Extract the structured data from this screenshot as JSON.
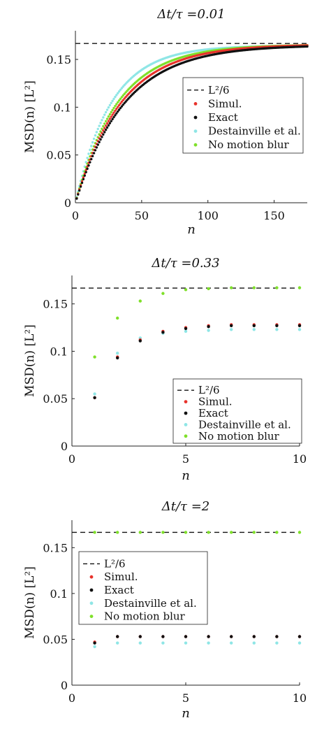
{
  "colors": {
    "simul": "#e8322b",
    "exact": "#111111",
    "destainville": "#8fe6e6",
    "no_blur": "#7fe02a",
    "reference": "#111111"
  },
  "chart_data": [
    {
      "type": "scatter",
      "title": "Δt/τ =0.01",
      "xlabel": "n",
      "ylabel": "MSD(n) [L²]",
      "xlim": [
        0,
        175
      ],
      "ylim": [
        0,
        0.18
      ],
      "xticks": [
        0,
        50,
        100,
        150
      ],
      "xtick_labels": [
        "0",
        "50",
        "100",
        "150"
      ],
      "yticks": [
        0,
        0.05,
        0.1,
        0.15
      ],
      "ytick_labels": [
        "0",
        "0.05",
        "0.1",
        "0.15"
      ],
      "reference_line": {
        "name": "L²/6",
        "y": 0.1667
      },
      "legend_position": "right",
      "legend": [
        "L²/6",
        "Simul.",
        "Exact",
        "Destainville et al.",
        "No motion blur"
      ],
      "curves": {
        "n_max": 175,
        "series": [
          {
            "key": "destainville",
            "label": "Destainville et al.",
            "asymptote": 0.1645,
            "rate": 0.0373
          },
          {
            "key": "no_blur",
            "label": "No motion blur",
            "asymptote": 0.1655,
            "rate": 0.0315
          },
          {
            "key": "simul",
            "label": "Simul.",
            "asymptote": 0.1657,
            "rate": 0.029
          },
          {
            "key": "exact",
            "label": "Exact",
            "asymptote": 0.165,
            "rate": 0.027
          }
        ]
      }
    },
    {
      "type": "scatter",
      "title": "Δt/τ =0.33",
      "xlabel": "n",
      "ylabel": "MSD(n) [L²]",
      "xlim": [
        0,
        10
      ],
      "ylim": [
        0,
        0.18
      ],
      "xticks": [
        0,
        5,
        10
      ],
      "xtick_labels": [
        "0",
        "5",
        "10"
      ],
      "yticks": [
        0,
        0.05,
        0.1,
        0.15
      ],
      "ytick_labels": [
        "0",
        "0.05",
        "0.1",
        "0.15"
      ],
      "reference_line": {
        "name": "L²/6",
        "y": 0.1667
      },
      "legend_position": "bottom-right",
      "legend": [
        "L²/6",
        "Simul.",
        "Exact",
        "Destainville et al.",
        "No motion blur"
      ],
      "x": [
        1,
        2,
        3,
        4,
        5,
        6,
        7,
        8,
        9,
        10
      ],
      "series": [
        {
          "key": "no_blur",
          "label": "No motion blur",
          "values": [
            0.094,
            0.135,
            0.153,
            0.161,
            0.165,
            0.166,
            0.167,
            0.167,
            0.167,
            0.167
          ]
        },
        {
          "key": "destainville",
          "label": "Destainville et al.",
          "values": [
            0.055,
            0.098,
            0.114,
            0.119,
            0.121,
            0.122,
            0.123,
            0.123,
            0.123,
            0.123
          ]
        },
        {
          "key": "simul",
          "label": "Simul.",
          "values": [
            0.051,
            0.094,
            0.112,
            0.121,
            0.125,
            0.127,
            0.128,
            0.128,
            0.128,
            0.128
          ]
        },
        {
          "key": "exact",
          "label": "Exact",
          "values": [
            0.051,
            0.093,
            0.111,
            0.12,
            0.124,
            0.126,
            0.127,
            0.127,
            0.127,
            0.127
          ]
        }
      ]
    },
    {
      "type": "scatter",
      "title": "Δt/τ =2",
      "xlabel": "n",
      "ylabel": "MSD(n) [L²]",
      "xlim": [
        0,
        10
      ],
      "ylim": [
        0,
        0.18
      ],
      "xticks": [
        0,
        5,
        10
      ],
      "xtick_labels": [
        "0",
        "5",
        "10"
      ],
      "yticks": [
        0,
        0.05,
        0.1,
        0.15
      ],
      "ytick_labels": [
        "0",
        "0.05",
        "0.1",
        "0.15"
      ],
      "reference_line": {
        "name": "L²/6",
        "y": 0.1667
      },
      "legend_position": "left",
      "legend": [
        "L²/6",
        "Simul.",
        "Exact",
        "Destainville et al.",
        "No motion blur"
      ],
      "x": [
        1,
        2,
        3,
        4,
        5,
        6,
        7,
        8,
        9,
        10
      ],
      "series": [
        {
          "key": "no_blur",
          "label": "No motion blur",
          "values": [
            0.1667,
            0.1667,
            0.1667,
            0.1667,
            0.1667,
            0.1667,
            0.1667,
            0.1667,
            0.1667,
            0.1667
          ]
        },
        {
          "key": "destainville",
          "label": "Destainville et al.",
          "values": [
            0.042,
            0.046,
            0.046,
            0.046,
            0.046,
            0.046,
            0.046,
            0.046,
            0.046,
            0.046
          ]
        },
        {
          "key": "simul",
          "label": "Simul.",
          "values": [
            0.047,
            0.053,
            0.053,
            0.053,
            0.053,
            0.053,
            0.053,
            0.053,
            0.053,
            0.053
          ]
        },
        {
          "key": "exact",
          "label": "Exact",
          "values": [
            0.046,
            0.053,
            0.053,
            0.053,
            0.053,
            0.053,
            0.053,
            0.053,
            0.053,
            0.053
          ]
        }
      ]
    }
  ]
}
